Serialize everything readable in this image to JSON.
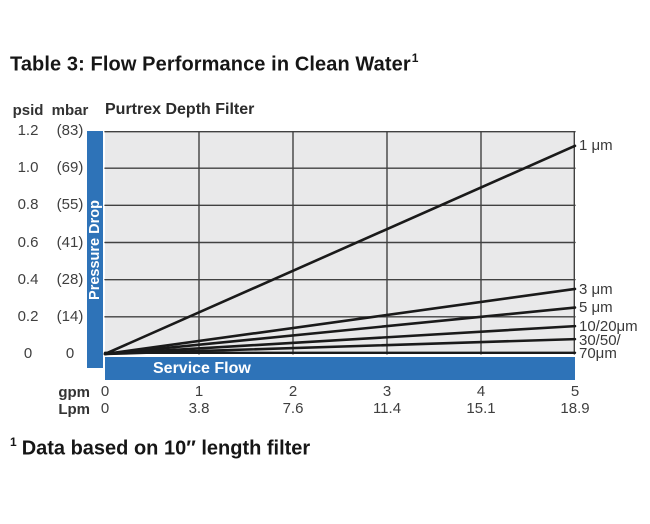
{
  "page": {
    "title": "Table 3: Flow Performance in Clean Water",
    "title_superscript": "1",
    "footnote_superscript": "1",
    "footnote_text": "Data based on 10″ length filter"
  },
  "chart": {
    "heading": "Purtrex Depth Filter",
    "y_units_primary": "psid",
    "y_units_secondary": "mbar",
    "x_units_primary": "gpm",
    "x_units_secondary": "Lpm",
    "y_axis_title": "Pressure Drop",
    "x_axis_title": "Service Flow",
    "psid_ticks": [
      "1.2",
      "1.0",
      "0.8",
      "0.6",
      "0.4",
      "0.2",
      "0"
    ],
    "mbar_ticks": [
      "(83)",
      "(69)",
      "(55)",
      "(41)",
      "(28)",
      "(14)",
      "0"
    ],
    "gpm_ticks": [
      "0",
      "1",
      "2",
      "3",
      "4",
      "5"
    ],
    "lpm_ticks": [
      "0",
      "3.8",
      "7.6",
      "11.4",
      "15.1",
      "18.9"
    ],
    "micron_label_lines": [
      "1 μm",
      "3 μm",
      "5 μm",
      "10/20μm",
      "30/50/",
      "70μm"
    ]
  },
  "chart_data": {
    "type": "line",
    "title": "Purtrex Depth Filter",
    "xlabel": "Service Flow",
    "ylabel": "Pressure Drop",
    "x_units": [
      "gpm",
      "Lpm"
    ],
    "y_units": [
      "psid",
      "mbar"
    ],
    "xlim_gpm": [
      0,
      5
    ],
    "ylim_psid": [
      0,
      1.2
    ],
    "x_ticks_gpm": [
      0,
      1,
      2,
      3,
      4,
      5
    ],
    "x_ticks_lpm": [
      0,
      3.8,
      7.6,
      11.4,
      15.1,
      18.9
    ],
    "y_ticks_psid": [
      0,
      0.2,
      0.4,
      0.6,
      0.8,
      1.0,
      1.2
    ],
    "y_ticks_mbar": [
      0,
      14,
      28,
      41,
      55,
      69,
      83
    ],
    "grid": true,
    "legend_position": "right-edge-labels",
    "series": [
      {
        "name": "1 μm",
        "x_gpm": [
          0,
          5
        ],
        "y_psid": [
          0,
          1.12
        ]
      },
      {
        "name": "3 μm",
        "x_gpm": [
          0,
          5
        ],
        "y_psid": [
          0,
          0.35
        ]
      },
      {
        "name": "5 μm",
        "x_gpm": [
          0,
          5
        ],
        "y_psid": [
          0,
          0.25
        ]
      },
      {
        "name": "10/20 μm",
        "x_gpm": [
          0,
          5
        ],
        "y_psid": [
          0,
          0.15
        ]
      },
      {
        "name": "30/50/70 μm",
        "x_gpm": [
          0,
          5
        ],
        "y_psid": [
          0,
          0.08
        ]
      }
    ]
  },
  "colors": {
    "accent_blue": "#2e73b8",
    "plot_background": "#e9e9ea",
    "gridline": "#414141",
    "series_line": "#1a1a1a",
    "text_dark": "#161616",
    "text_gray": "#3f3f3f"
  }
}
